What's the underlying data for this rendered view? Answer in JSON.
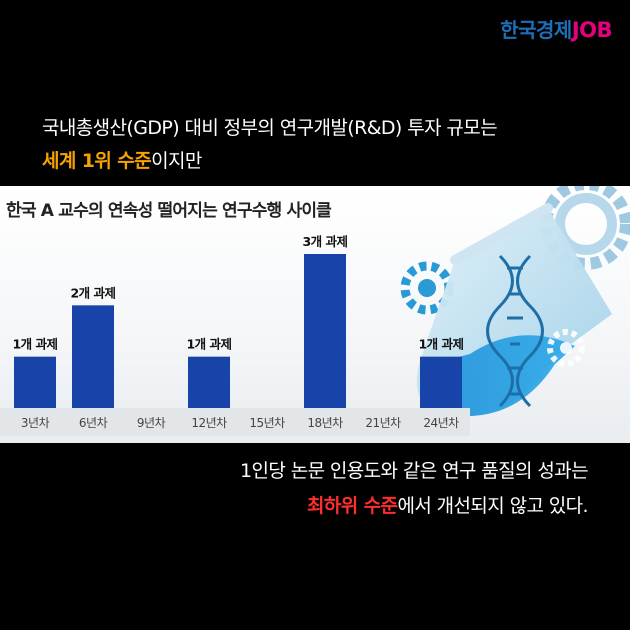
{
  "brand": {
    "korean": "한국경제",
    "job": "JOB"
  },
  "caption_top": {
    "line1": "국내총생산(GDP) 대비 정부의 연구개발(R&D) 투자 규모는",
    "highlight": "세계 1위 수준",
    "line2_rest": "이지만"
  },
  "caption_bottom": {
    "line1": "1인당 논문 인용도와 같은 연구 품질의 성과는",
    "highlight": "최하위 수준",
    "line2_rest": "에서 개선되지 않고 있다."
  },
  "colors": {
    "bar": "#1843a8",
    "top_highlight": "#f5a300",
    "bottom_highlight": "#ff2d2d"
  },
  "chart_data": {
    "type": "bar",
    "title": "한국 A 교수의 연속성 떨어지는 연구수행 사이클",
    "categories": [
      "3년차",
      "6년차",
      "9년차",
      "12년차",
      "15년차",
      "18년차",
      "21년차",
      "24년차"
    ],
    "values": [
      1,
      2,
      0,
      1,
      0,
      3,
      0,
      1
    ],
    "data_labels": [
      "1개 과제",
      "2개 과제",
      "",
      "1개 과제",
      "",
      "3개 과제",
      "",
      "1개 과제"
    ],
    "ylim": [
      0,
      3
    ],
    "grid": false
  }
}
